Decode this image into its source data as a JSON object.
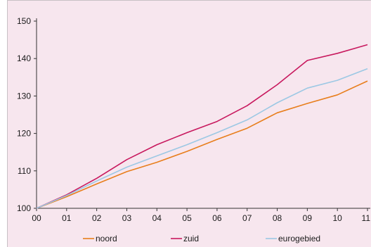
{
  "chart_data": {
    "type": "line",
    "title": "",
    "xlabel": "",
    "ylabel": "",
    "categories": [
      "00",
      "01",
      "02",
      "03",
      "04",
      "05",
      "06",
      "07",
      "08",
      "09",
      "10",
      "11"
    ],
    "ylim": [
      100,
      150
    ],
    "yticks": [
      100,
      110,
      120,
      130,
      140,
      150
    ],
    "grid": false,
    "legend_position": "bottom",
    "series": [
      {
        "name": "noord",
        "color": "#e87e1c",
        "values": [
          100,
          103.1,
          106.5,
          109.8,
          112.3,
          115.2,
          118.4,
          121.4,
          125.5,
          128.0,
          130.3,
          134.0
        ]
      },
      {
        "name": "zuid",
        "color": "#c8195e",
        "values": [
          100,
          103.6,
          108.0,
          113.0,
          117.0,
          120.2,
          123.2,
          127.4,
          133.0,
          139.5,
          141.4,
          143.7
        ]
      },
      {
        "name": "eurogebied",
        "color": "#9cc8e4",
        "values": [
          100,
          103.4,
          107.3,
          111.0,
          114.0,
          117.0,
          120.2,
          123.6,
          128.2,
          132.1,
          134.2,
          137.3
        ]
      }
    ]
  }
}
